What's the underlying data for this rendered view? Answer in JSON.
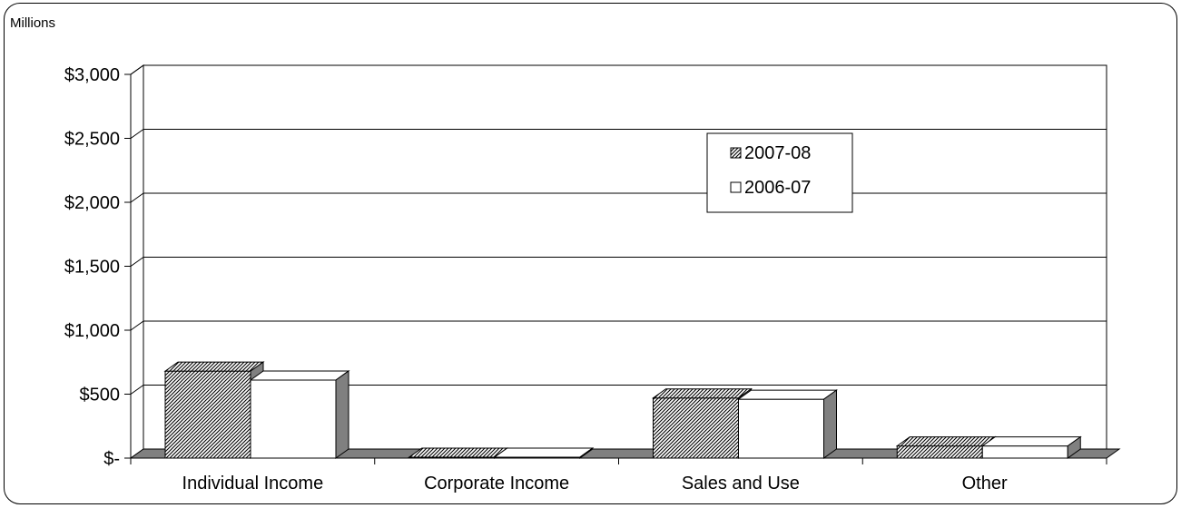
{
  "chart_data": {
    "type": "bar",
    "title": "",
    "subtitle": "",
    "xlabel": "",
    "ylabel": "",
    "unit_label": "Millions",
    "categories": [
      "Individual Income",
      "Corporate Income",
      "Sales and Use",
      "Other"
    ],
    "series": [
      {
        "name": "2007-08",
        "values": [
          680,
          5,
          470,
          95
        ],
        "fill": "diagonal-hatch",
        "color": "#000000"
      },
      {
        "name": "2006-07",
        "values": [
          610,
          3,
          460,
          95
        ],
        "fill": "solid",
        "color": "#ffffff"
      }
    ],
    "ylim": [
      0,
      3000
    ],
    "y_ticks": [
      0,
      500,
      1000,
      1500,
      2000,
      2500,
      3000
    ],
    "y_tick_labels": [
      "$-",
      "$500",
      "$1,000",
      "$1,500",
      "$2,000",
      "$2,500",
      "$3,000"
    ],
    "grid": true,
    "legend_position": "upper-right-center",
    "three_d": true,
    "colors": {
      "frame": "#000000",
      "floor": "#808080",
      "wall": "#ffffff",
      "grid": "#000000",
      "bar_side": "#808080",
      "bar_top_hatch": "#bfbfbf",
      "bar_top_white": "#ffffff"
    }
  }
}
